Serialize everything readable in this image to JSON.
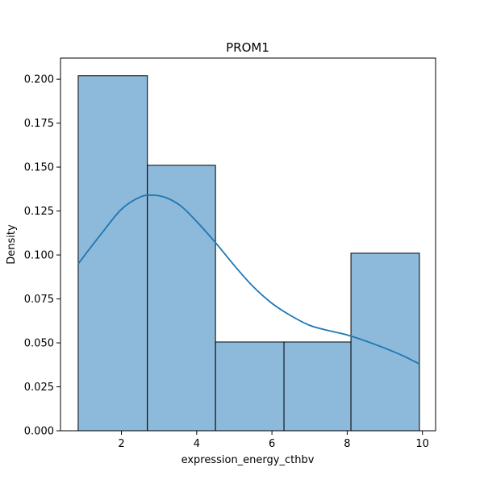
{
  "chart_data": {
    "type": "bar",
    "title": "PROM1",
    "xlabel": "expression_energy_cthbv",
    "ylabel": "Density",
    "xlim": [
      0.38,
      10.35
    ],
    "ylim": [
      0,
      0.212
    ],
    "grid": false,
    "legend": "none",
    "bins": [
      {
        "x0": 0.85,
        "x1": 2.69,
        "density": 0.202
      },
      {
        "x0": 2.69,
        "x1": 4.5,
        "density": 0.151
      },
      {
        "x0": 4.5,
        "x1": 6.32,
        "density": 0.0505
      },
      {
        "x0": 6.32,
        "x1": 8.1,
        "density": 0.0505
      },
      {
        "x0": 8.1,
        "x1": 9.92,
        "density": 0.101
      }
    ],
    "kde": {
      "x": [
        0.85,
        1.5,
        2.0,
        2.5,
        2.85,
        3.2,
        3.6,
        4.0,
        4.5,
        5.0,
        5.5,
        6.0,
        6.5,
        7.0,
        7.5,
        8.0,
        8.5,
        9.0,
        9.5,
        9.92
      ],
      "y": [
        0.095,
        0.113,
        0.126,
        0.133,
        0.134,
        0.1325,
        0.1275,
        0.119,
        0.107,
        0.094,
        0.082,
        0.0725,
        0.0655,
        0.06,
        0.057,
        0.0545,
        0.051,
        0.047,
        0.0425,
        0.038
      ]
    },
    "xticks": [
      2,
      4,
      6,
      8,
      10
    ],
    "xtick_labels": [
      "2",
      "4",
      "6",
      "8",
      "10"
    ],
    "yticks": [
      0.0,
      0.025,
      0.05,
      0.075,
      0.1,
      0.125,
      0.15,
      0.175,
      0.2
    ],
    "ytick_labels": [
      "0.000",
      "0.025",
      "0.050",
      "0.075",
      "0.100",
      "0.125",
      "0.150",
      "0.175",
      "0.200"
    ],
    "colors": {
      "bar_fill": "#8db9da",
      "bar_edge": "#000000",
      "kde_line": "#1f77b4"
    }
  }
}
